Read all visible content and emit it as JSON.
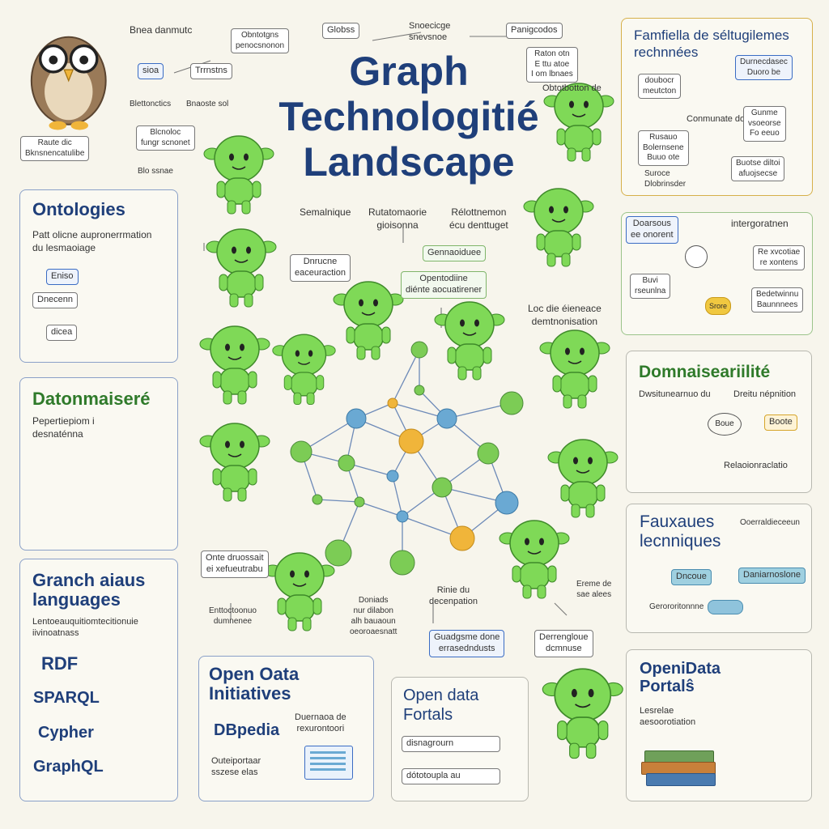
{
  "title": [
    "Graph",
    "Technologitié",
    "Landscape"
  ],
  "top_labels": {
    "a1": "Bnea danmutc",
    "a2": "Obntotgns\npenocsnonon",
    "a3": "sioa",
    "a4": "Trrnstns",
    "a5": "Globss",
    "a6": "Snoecicge\nsnevsnoe",
    "a7": "Panigcodos",
    "a8": "Raton otn\nE ttu atoe\nI om lbnaes",
    "a9": "Obtotbotton de",
    "a10": "Blettonctics",
    "a11": "Blcnoloc\nfungr scnonet",
    "a12": "Raute dic\nBknsnencatulibe",
    "a13": "Blo ssnae",
    "a14": "Bnaoste sol"
  },
  "top_right": {
    "title": "Famfiella de séltugilemes\nrechnnées",
    "b1": "doubocr\nmeutcton",
    "b2": "Conmunate dos",
    "b3": "Durnecdasec\nDuoro be",
    "b4": "Gunme\nvsoeorse\nFo eeuo",
    "b5": "Rusauo\nBolernsene\nBuuo ote",
    "b6": "Suroce\nDlobrinsder",
    "b7": "Buotse diltoi\nafuojsecse"
  },
  "ontologies": {
    "title": "Ontologies",
    "desc": "Patt olicne aupronerrmation\ndu lesmaoiage",
    "b1": "Eniso",
    "b2": "Dnecenn",
    "b3": "dicea"
  },
  "center_labels": {
    "c1": "Semalnique",
    "c2": "Rutatomaorie\ngioisonna",
    "c3": "Rélottnemon\nécu denttuget",
    "c4": "Dnrucne\neaceuraction",
    "c5": "Gennaoiduee",
    "c6": "Opentodiine\ndiénte aocuatirener",
    "c7": "Loc die éieneace\ndemtnonisation",
    "c8": "Onte druossait\nei xefueutrabu",
    "c9": "Enttoctoonuo\ndumnenee",
    "c10": "Doniads\nnur dilabon\nalh bauaoun\noeoroaesnatt",
    "c11": "Rinie du\ndecenpation",
    "c12": "Guadgsme done\nerrasedndusts",
    "c13": "Derrengloue\ndcmnuse",
    "c14": "Ereme de\nsae alees"
  },
  "datonmaisere": {
    "title": "Datonmaiseré",
    "desc": "Pepertiepiom i\ndesnaténna"
  },
  "right_mid": {
    "b1": "Doarsous\nee onorent",
    "b2": "intergoratnen",
    "b3": "Re xvcotiae\nre xontens",
    "b4": "Buvi\nrseunlna",
    "b5": "Bedetwinnu\nBaunnnees",
    "b6": "Srore"
  },
  "domnaise": {
    "title": "Domnaiseariilité",
    "b1": "Dwsitunearnuo du",
    "b2": "Dreitu népnition",
    "b3": "Boue",
    "b4": "Boote",
    "b5": "Relaoionraclatio"
  },
  "graph_languages": {
    "title": "Granch aiaus\nlanguages",
    "desc": "Lentoeauquitiomtecitionuie\niivinoatnass",
    "items": [
      "RDF",
      "SPARQL",
      "Cypher",
      "GraphQL"
    ]
  },
  "open_data_initiatives": {
    "title": "Open Oata\nInitiatives",
    "item": "DBpedia",
    "desc1": "Duernaoa de\nrexurontoori",
    "desc2": "Outeiportaar\nsszese elas"
  },
  "open_data_fortals": {
    "title": "Open data\nFortals",
    "b1": "disnagrourn",
    "b2": "dótotoupla au"
  },
  "fauxaues": {
    "title": "Fauxaues\nlecnniques",
    "b1": "Ooerraldieceeun",
    "b2": "Dncoue",
    "b3": "Daniarnoslone",
    "b4": "Gerororitonnne"
  },
  "openidata_portals": {
    "title": "OpeniData\nPortalŝ",
    "desc": "Lesrelae\naesoorotiation"
  },
  "colors": {
    "node_green": "#7ccc55",
    "node_blue": "#6aa9d3",
    "node_gold": "#f0b53a",
    "title_blue": "#1f3f7a",
    "title_green": "#2f7a2a",
    "mascot_green": "#7fd957"
  },
  "chart_data": null
}
